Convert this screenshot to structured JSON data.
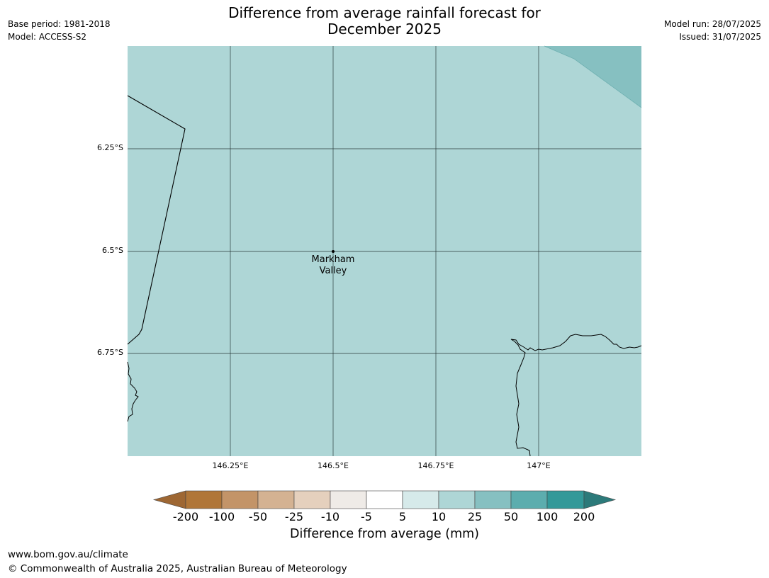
{
  "title": {
    "line1": "Difference from average rainfall forecast for",
    "line2": "December 2025"
  },
  "meta_left": {
    "base_period": "Base period: 1981-2018",
    "model": "Model: ACCESS-S2"
  },
  "meta_right": {
    "model_run": "Model run: 28/07/2025",
    "issued": "Issued: 31/07/2025"
  },
  "map": {
    "fill_color": "#aed6d6",
    "lat_ticks": [
      "6.25°S",
      "6.5°S",
      "6.75°S"
    ],
    "lon_ticks": [
      "146.25°E",
      "146.5°E",
      "146.75°E",
      "147°E"
    ],
    "place": {
      "name_line1": "Markham",
      "name_line2": "Valley"
    }
  },
  "colorbar": {
    "title": "Difference from average (mm)",
    "labels": [
      "-200",
      "-100",
      "-50",
      "-25",
      "-10",
      "-5",
      "5",
      "10",
      "25",
      "50",
      "100",
      "200"
    ],
    "colors": [
      "#9e6733",
      "#b07638",
      "#c39468",
      "#d4b292",
      "#e5d0bd",
      "#efebe7",
      "#ffffff",
      "#d6eaea",
      "#aed6d6",
      "#86c0c1",
      "#5cadae",
      "#339999",
      "#2c7a7a"
    ]
  },
  "footer": {
    "url": "www.bom.gov.au/climate",
    "copyright": "© Commonwealth of Australia 2025, Australian Bureau of Meteorology"
  }
}
